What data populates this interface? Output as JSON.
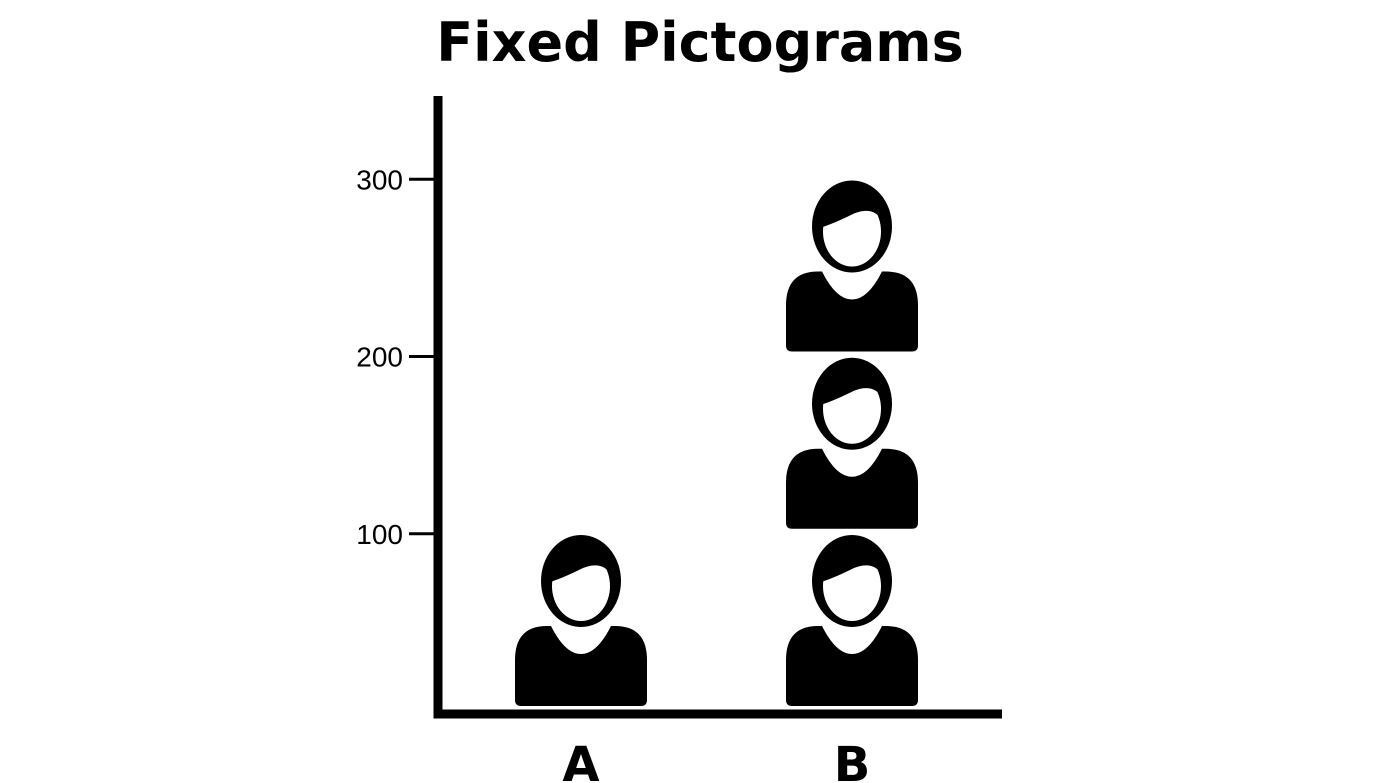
{
  "chart_data": {
    "type": "pictogram",
    "title": "Fixed Pictograms",
    "categories": [
      "A",
      "B"
    ],
    "values": [
      100,
      300
    ],
    "unit_per_icon": 100,
    "icon": "person-icon",
    "ylim": [
      0,
      345
    ],
    "yticks": [
      100,
      200,
      300
    ],
    "ytick_labels": [
      "100",
      "200",
      "300"
    ],
    "xlabel": "",
    "ylabel": "",
    "grid": false,
    "colors": {
      "icon": "#000000",
      "axis": "#000000",
      "background": "#ffffff"
    }
  }
}
